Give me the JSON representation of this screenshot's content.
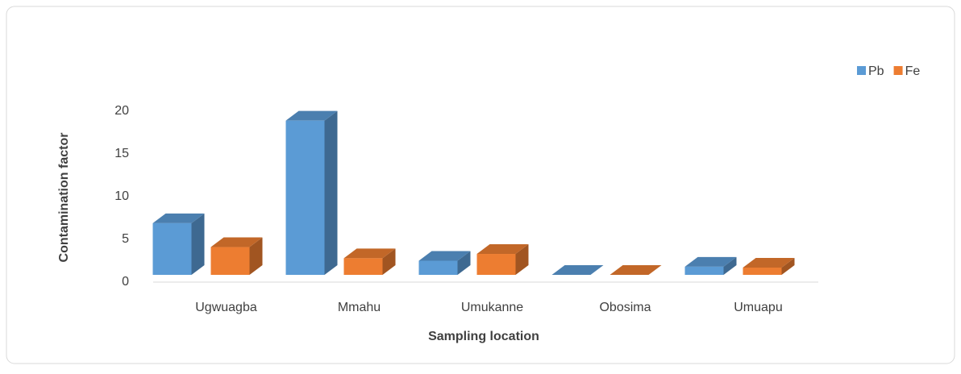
{
  "chart_data": {
    "type": "bar3d",
    "x_label": "Sampling location",
    "y_label": "Contamination factor",
    "categories": [
      "Ugwuagba",
      "Mmahu",
      "Umukanne",
      "Obosima",
      "Umuapu"
    ],
    "series": [
      {
        "name": "Pb",
        "color": "#5b9bd5",
        "values": [
          6.9,
          18.9,
          2.5,
          0.1,
          1.8
        ]
      },
      {
        "name": "Fe",
        "color": "#ed7d31",
        "values": [
          4.1,
          2.8,
          3.3,
          0.1,
          1.7
        ]
      }
    ],
    "ylim": [
      0,
      20
    ],
    "yticks": [
      0,
      5,
      10,
      15,
      20
    ],
    "grid": false,
    "legend": "top-right"
  }
}
